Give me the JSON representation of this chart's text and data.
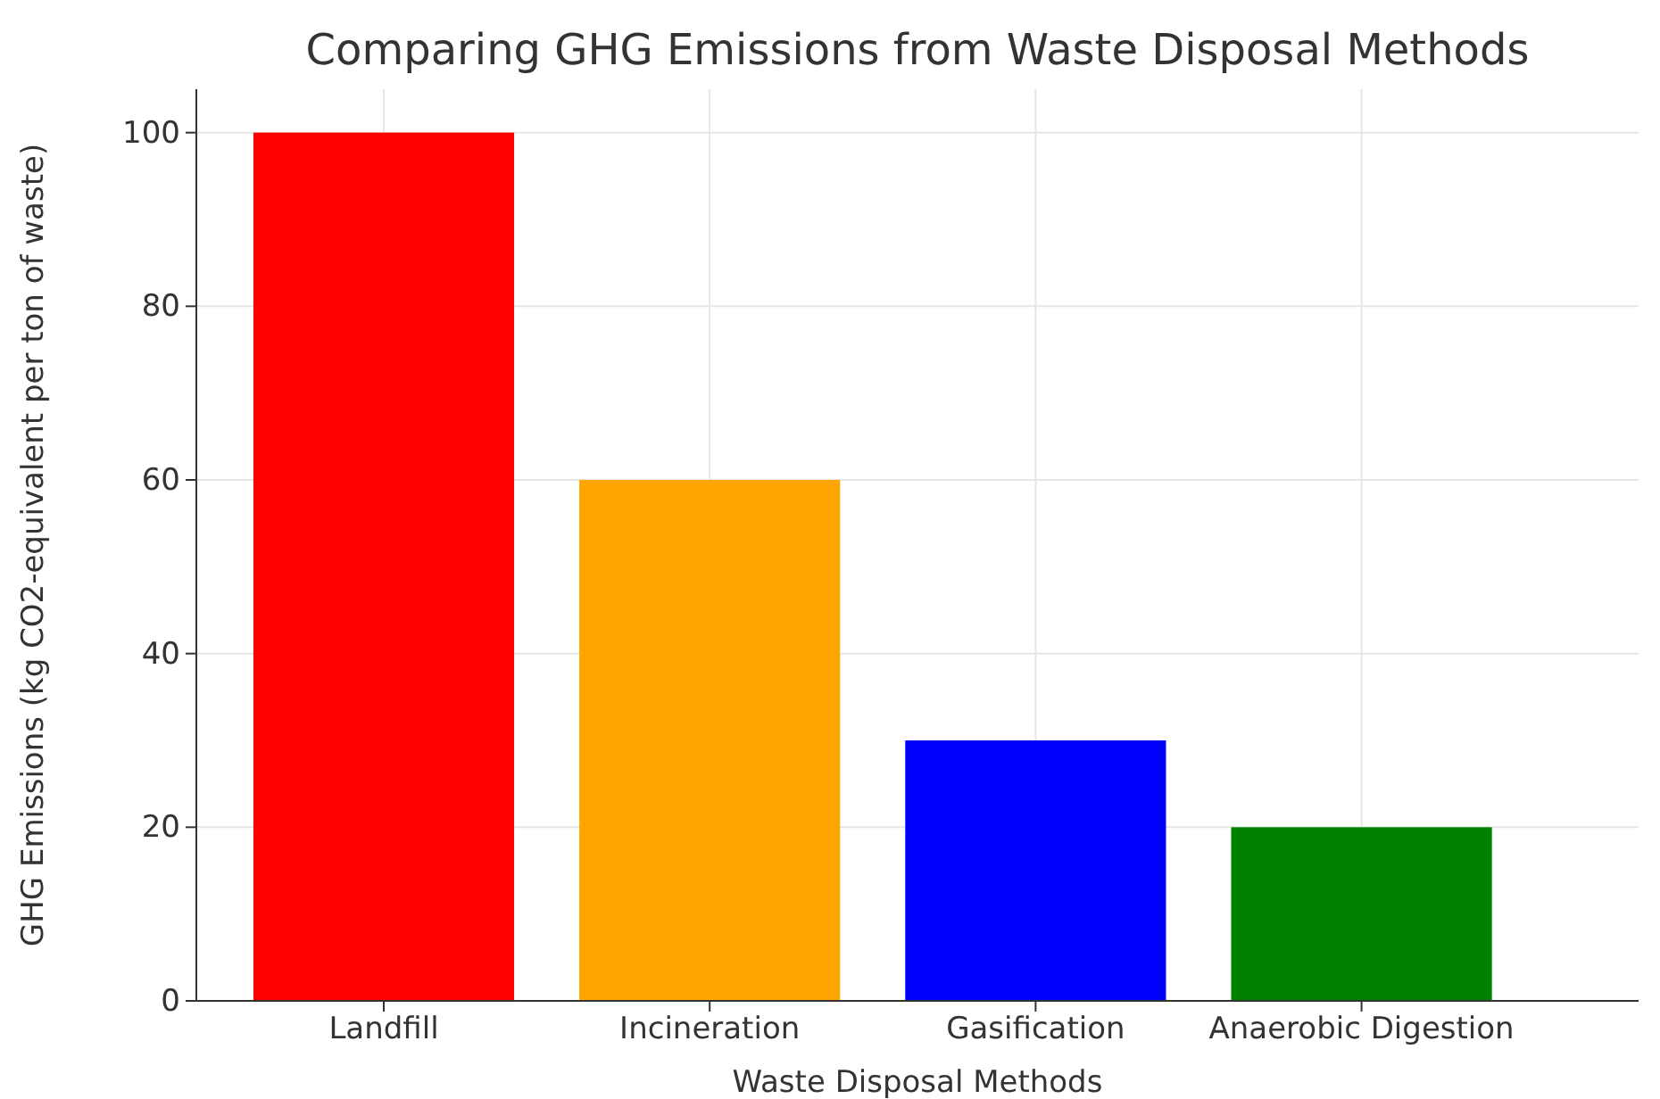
{
  "chart_data": {
    "type": "bar",
    "title": "Comparing GHG Emissions from Waste Disposal Methods",
    "xlabel": "Waste Disposal Methods",
    "ylabel": "GHG Emissions (kg CO2-equivalent per ton of waste)",
    "categories": [
      "Landfill",
      "Incineration",
      "Gasification",
      "Anaerobic Digestion"
    ],
    "values": [
      100,
      60,
      30,
      20
    ],
    "colors": [
      "#ff0000",
      "#ffa500",
      "#0000ff",
      "#008000"
    ],
    "ylim": [
      0,
      105
    ],
    "yticks": [
      0,
      20,
      40,
      60,
      80,
      100
    ],
    "grid": true
  }
}
